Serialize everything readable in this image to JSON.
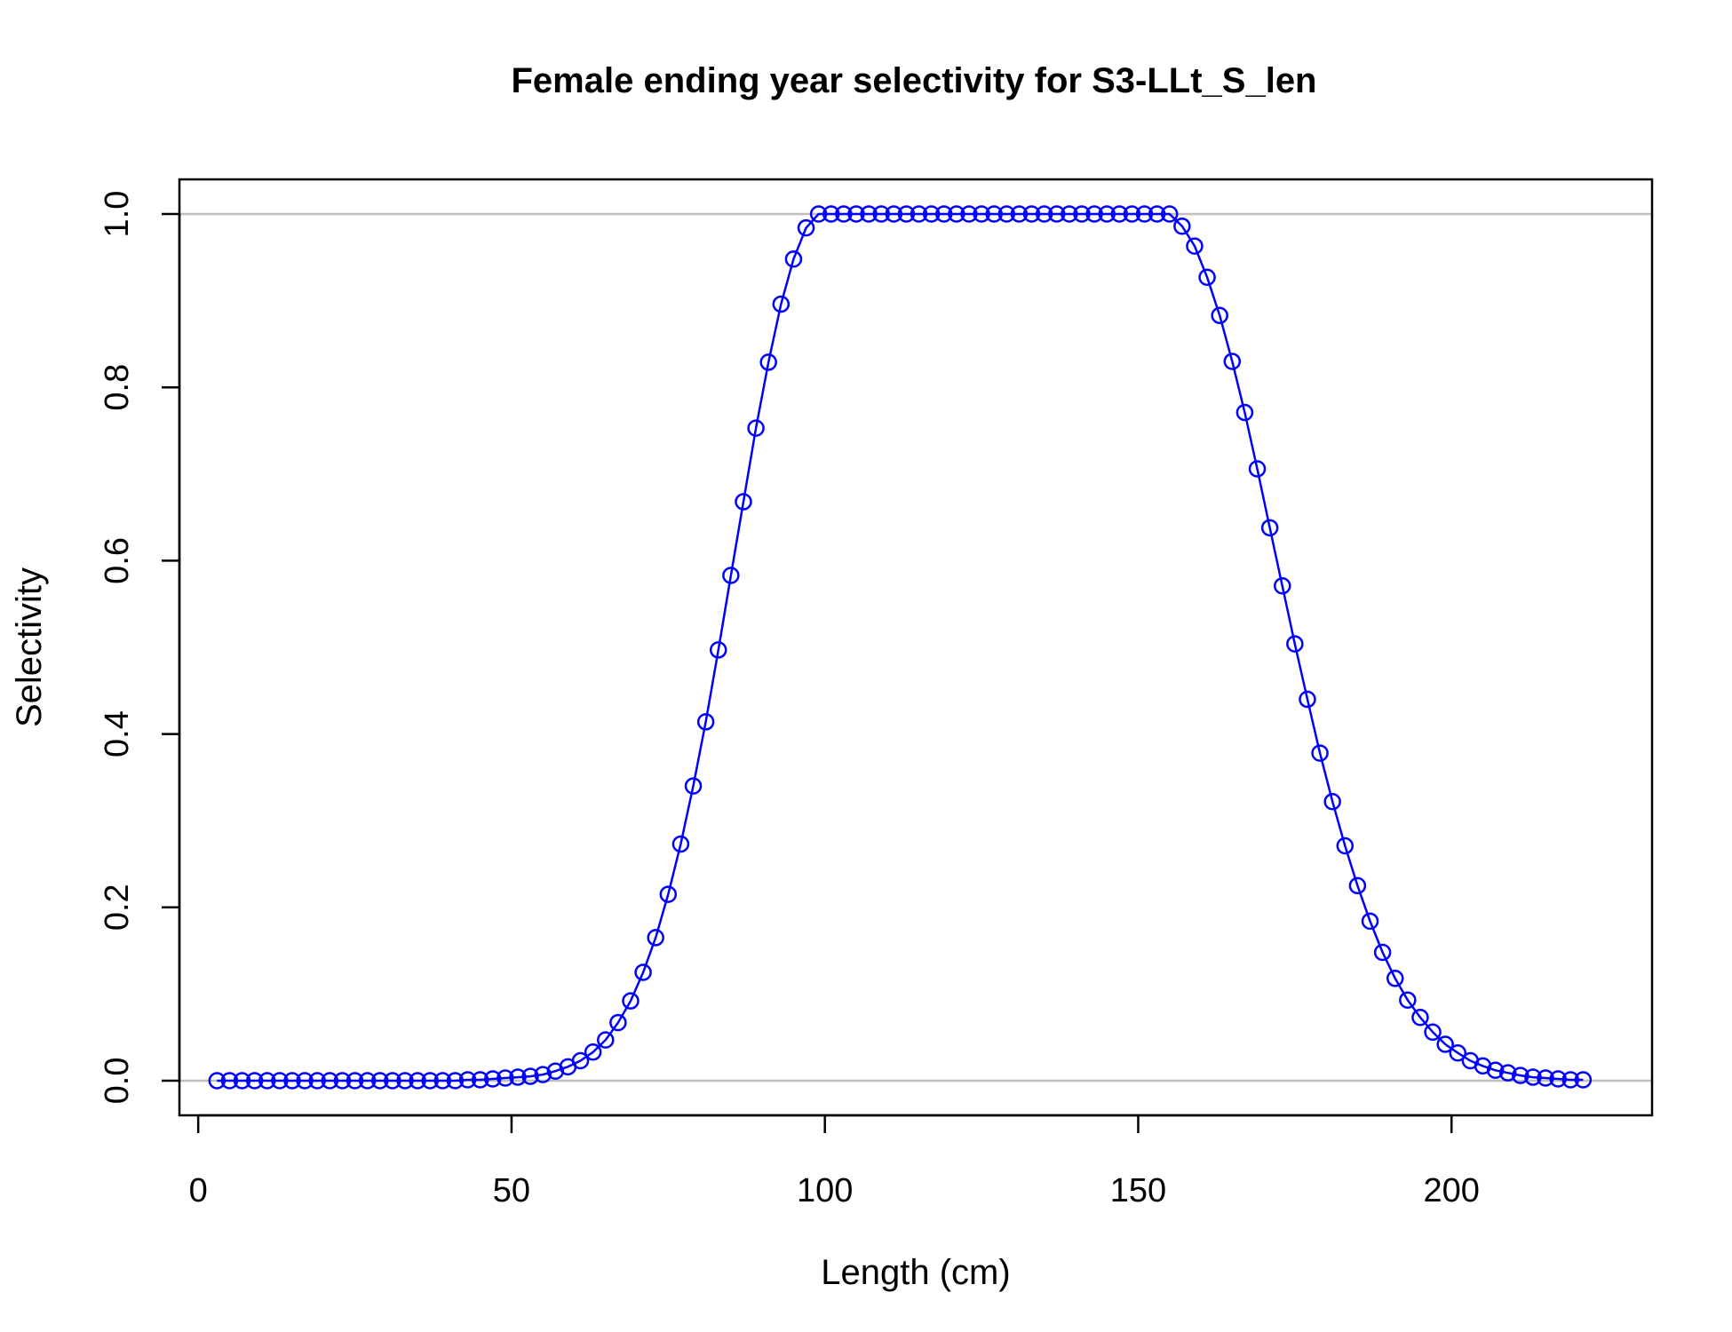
{
  "chart_data": {
    "type": "line",
    "title": "Female ending year selectivity for S3-LLt_S_len",
    "xlabel": "Length (cm)",
    "ylabel": "Selectivity",
    "xlim": [
      -3,
      232
    ],
    "ylim": [
      -0.04,
      1.04
    ],
    "x_ticks": [
      0,
      50,
      100,
      150,
      200
    ],
    "y_ticks": [
      0.0,
      0.2,
      0.4,
      0.6,
      0.8,
      1.0
    ],
    "x_tick_labels": [
      "0",
      "50",
      "100",
      "150",
      "200"
    ],
    "y_tick_labels": [
      "0.0",
      "0.2",
      "0.4",
      "0.6",
      "0.8",
      "1.0"
    ],
    "reference_lines": [
      0,
      1
    ],
    "reference_line_color": "#bebebe",
    "series_color": "#0000ff",
    "marker": "open-circle",
    "grid": false,
    "legend": "none",
    "series": [
      {
        "x": [
          3,
          5,
          7,
          9,
          11,
          13,
          15,
          17,
          19,
          21,
          23,
          25,
          27,
          29,
          31,
          33,
          35,
          37,
          39,
          41,
          43,
          45,
          47,
          49,
          51,
          53,
          55,
          57,
          59,
          61,
          63,
          65,
          67,
          69,
          71,
          73,
          75,
          77,
          79,
          81,
          83,
          85,
          87,
          89,
          91,
          93,
          95,
          97,
          99,
          101,
          103,
          105,
          107,
          109,
          111,
          113,
          115,
          117,
          119,
          121,
          123,
          125,
          127,
          129,
          131,
          133,
          135,
          137,
          139,
          141,
          143,
          145,
          147,
          149,
          151,
          153,
          155,
          157,
          159,
          161,
          163,
          165,
          167,
          169,
          171,
          173,
          175,
          177,
          179,
          181,
          183,
          185,
          187,
          189,
          191,
          193,
          195,
          197,
          199,
          201,
          203,
          205,
          207,
          209,
          211,
          213,
          215,
          217,
          219,
          221
        ],
        "y": [
          0,
          0,
          0,
          0,
          0,
          0,
          0,
          0,
          0,
          0,
          0,
          0,
          0,
          0,
          0,
          0,
          0,
          0,
          0,
          0,
          0.001,
          0.001,
          0.002,
          0.003,
          0.004,
          0.005,
          0.007,
          0.011,
          0.016,
          0.023,
          0.033,
          0.047,
          0.067,
          0.092,
          0.125,
          0.165,
          0.215,
          0.273,
          0.34,
          0.414,
          0.497,
          0.583,
          0.668,
          0.753,
          0.829,
          0.896,
          0.948,
          0.984,
          1,
          1,
          1,
          1,
          1,
          1,
          1,
          1,
          1,
          1,
          1,
          1,
          1,
          1,
          1,
          1,
          1,
          1,
          1,
          1,
          1,
          1,
          1,
          1,
          1,
          1,
          1,
          1,
          1,
          0.986,
          0.963,
          0.927,
          0.883,
          0.83,
          0.771,
          0.706,
          0.638,
          0.571,
          0.504,
          0.44,
          0.378,
          0.322,
          0.271,
          0.225,
          0.184,
          0.148,
          0.118,
          0.093,
          0.073,
          0.056,
          0.042,
          0.032,
          0.023,
          0.017,
          0.012,
          0.009,
          0.006,
          0.004,
          0.003,
          0.002,
          0.001,
          0.001
        ]
      }
    ]
  }
}
